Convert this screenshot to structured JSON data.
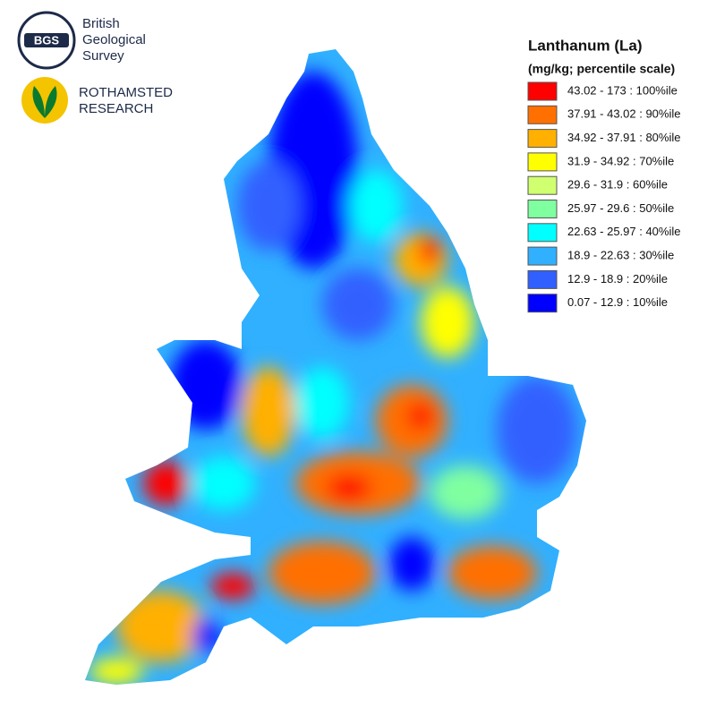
{
  "logos": [
    {
      "abbr": "BGS",
      "lines": [
        "British",
        "Geological",
        "Survey"
      ]
    },
    {
      "lines": [
        "ROTHAMSTED",
        "RESEARCH"
      ]
    }
  ],
  "legend": {
    "title": "Lanthanum (La)",
    "subtitle": "(mg/kg; percentile scale)",
    "items": [
      {
        "label": "43.02 - 173 : 100%ile",
        "color": "#ff0000"
      },
      {
        "label": "37.91 - 43.02 : 90%ile",
        "color": "#ff7000"
      },
      {
        "label": "34.92 - 37.91 : 80%ile",
        "color": "#ffb000"
      },
      {
        "label": "31.9 - 34.92 : 70%ile",
        "color": "#ffff00"
      },
      {
        "label": "29.6 - 31.9 : 60%ile",
        "color": "#d0ff70"
      },
      {
        "label": "25.97 - 29.6 : 50%ile",
        "color": "#80ffa0"
      },
      {
        "label": "22.63 - 25.97 : 40%ile",
        "color": "#00ffff"
      },
      {
        "label": "18.9 - 22.63 : 30%ile",
        "color": "#30b0ff"
      },
      {
        "label": "12.9 - 18.9 : 20%ile",
        "color": "#3060ff"
      },
      {
        "label": "0.07 - 12.9 : 10%ile",
        "color": "#0000ff"
      }
    ]
  }
}
